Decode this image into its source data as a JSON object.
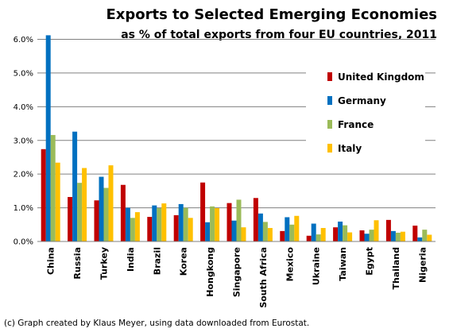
{
  "chart_data": {
    "type": "bar",
    "title": "Exports to Selected Emerging Economies",
    "subtitle": "as % of total exports from four EU countries, 2011",
    "xlabel": "",
    "ylabel": "",
    "ylim": [
      0,
      6.0
    ],
    "yticks": [
      "0.0%",
      "1.0%",
      "2.0%",
      "3.0%",
      "4.0%",
      "5.0%",
      "6.0%"
    ],
    "grid": true,
    "legend_position": "right",
    "categories": [
      "China",
      "Russia",
      "Turkey",
      "India",
      "Brazil",
      "Korea",
      "Hongkong",
      "Singapore",
      "South Africa",
      "Mexico",
      "Ukraine",
      "Taiwan",
      "Egypt",
      "Thailand",
      "Nigeria"
    ],
    "series": [
      {
        "name": "United Kingdom",
        "color": "#c00000",
        "values": [
          2.74,
          1.32,
          1.22,
          1.68,
          0.73,
          0.78,
          1.75,
          1.14,
          1.29,
          0.31,
          0.17,
          0.42,
          0.33,
          0.64,
          0.47
        ]
      },
      {
        "name": "Germany",
        "color": "#0070c0",
        "values": [
          6.12,
          3.26,
          1.92,
          1.0,
          1.07,
          1.11,
          0.57,
          0.62,
          0.83,
          0.72,
          0.53,
          0.59,
          0.23,
          0.31,
          0.12
        ]
      },
      {
        "name": "France",
        "color": "#9bbb59",
        "values": [
          3.16,
          1.74,
          1.59,
          0.7,
          0.99,
          1.0,
          1.04,
          1.24,
          0.58,
          0.5,
          0.21,
          0.48,
          0.35,
          0.26,
          0.35
        ]
      },
      {
        "name": "Italy",
        "color": "#ffc000",
        "values": [
          2.34,
          2.18,
          2.26,
          0.87,
          1.13,
          0.7,
          0.99,
          0.42,
          0.4,
          0.76,
          0.4,
          0.27,
          0.63,
          0.29,
          0.2
        ]
      }
    ]
  },
  "footer": "(c) Graph created by Klaus Meyer, using data downloaded from Eurostat."
}
